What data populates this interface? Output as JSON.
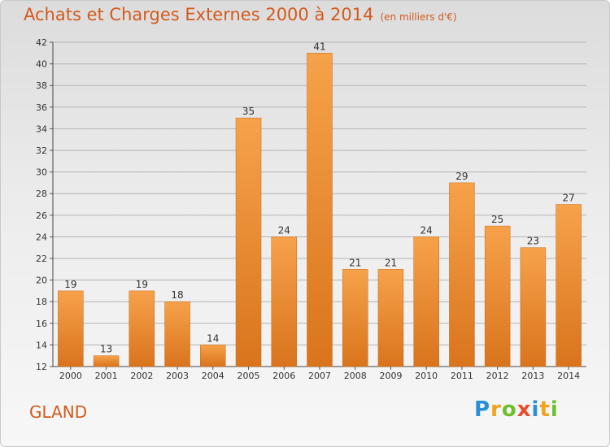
{
  "chart_data": {
    "type": "bar",
    "title": "Achats et Charges Externes 2000 à 2014",
    "subtitle": "(en milliers d'€)",
    "categories": [
      "2000",
      "2001",
      "2002",
      "2003",
      "2004",
      "2005",
      "2006",
      "2007",
      "2008",
      "2009",
      "2010",
      "2011",
      "2012",
      "2013",
      "2014"
    ],
    "values": [
      19,
      13,
      19,
      18,
      14,
      35,
      24,
      41,
      21,
      21,
      24,
      29,
      25,
      23,
      27
    ],
    "ylim": [
      12,
      42
    ],
    "yticks": [
      12,
      14,
      16,
      18,
      20,
      22,
      24,
      26,
      28,
      30,
      32,
      34,
      36,
      38,
      40,
      42
    ],
    "xlabel": "",
    "ylabel": "",
    "grid": true,
    "bar_color": "#f08a2c"
  },
  "footer": {
    "commune": "GLAND",
    "logo_letters": [
      "P",
      "r",
      "o",
      "x",
      "i",
      "t",
      "i"
    ],
    "logo_colors": [
      "#2a8fd6",
      "#f3a21b",
      "#6cbf2a",
      "#e84d2b",
      "#2a8fd6",
      "#f3a21b",
      "#6cbf2a"
    ]
  }
}
